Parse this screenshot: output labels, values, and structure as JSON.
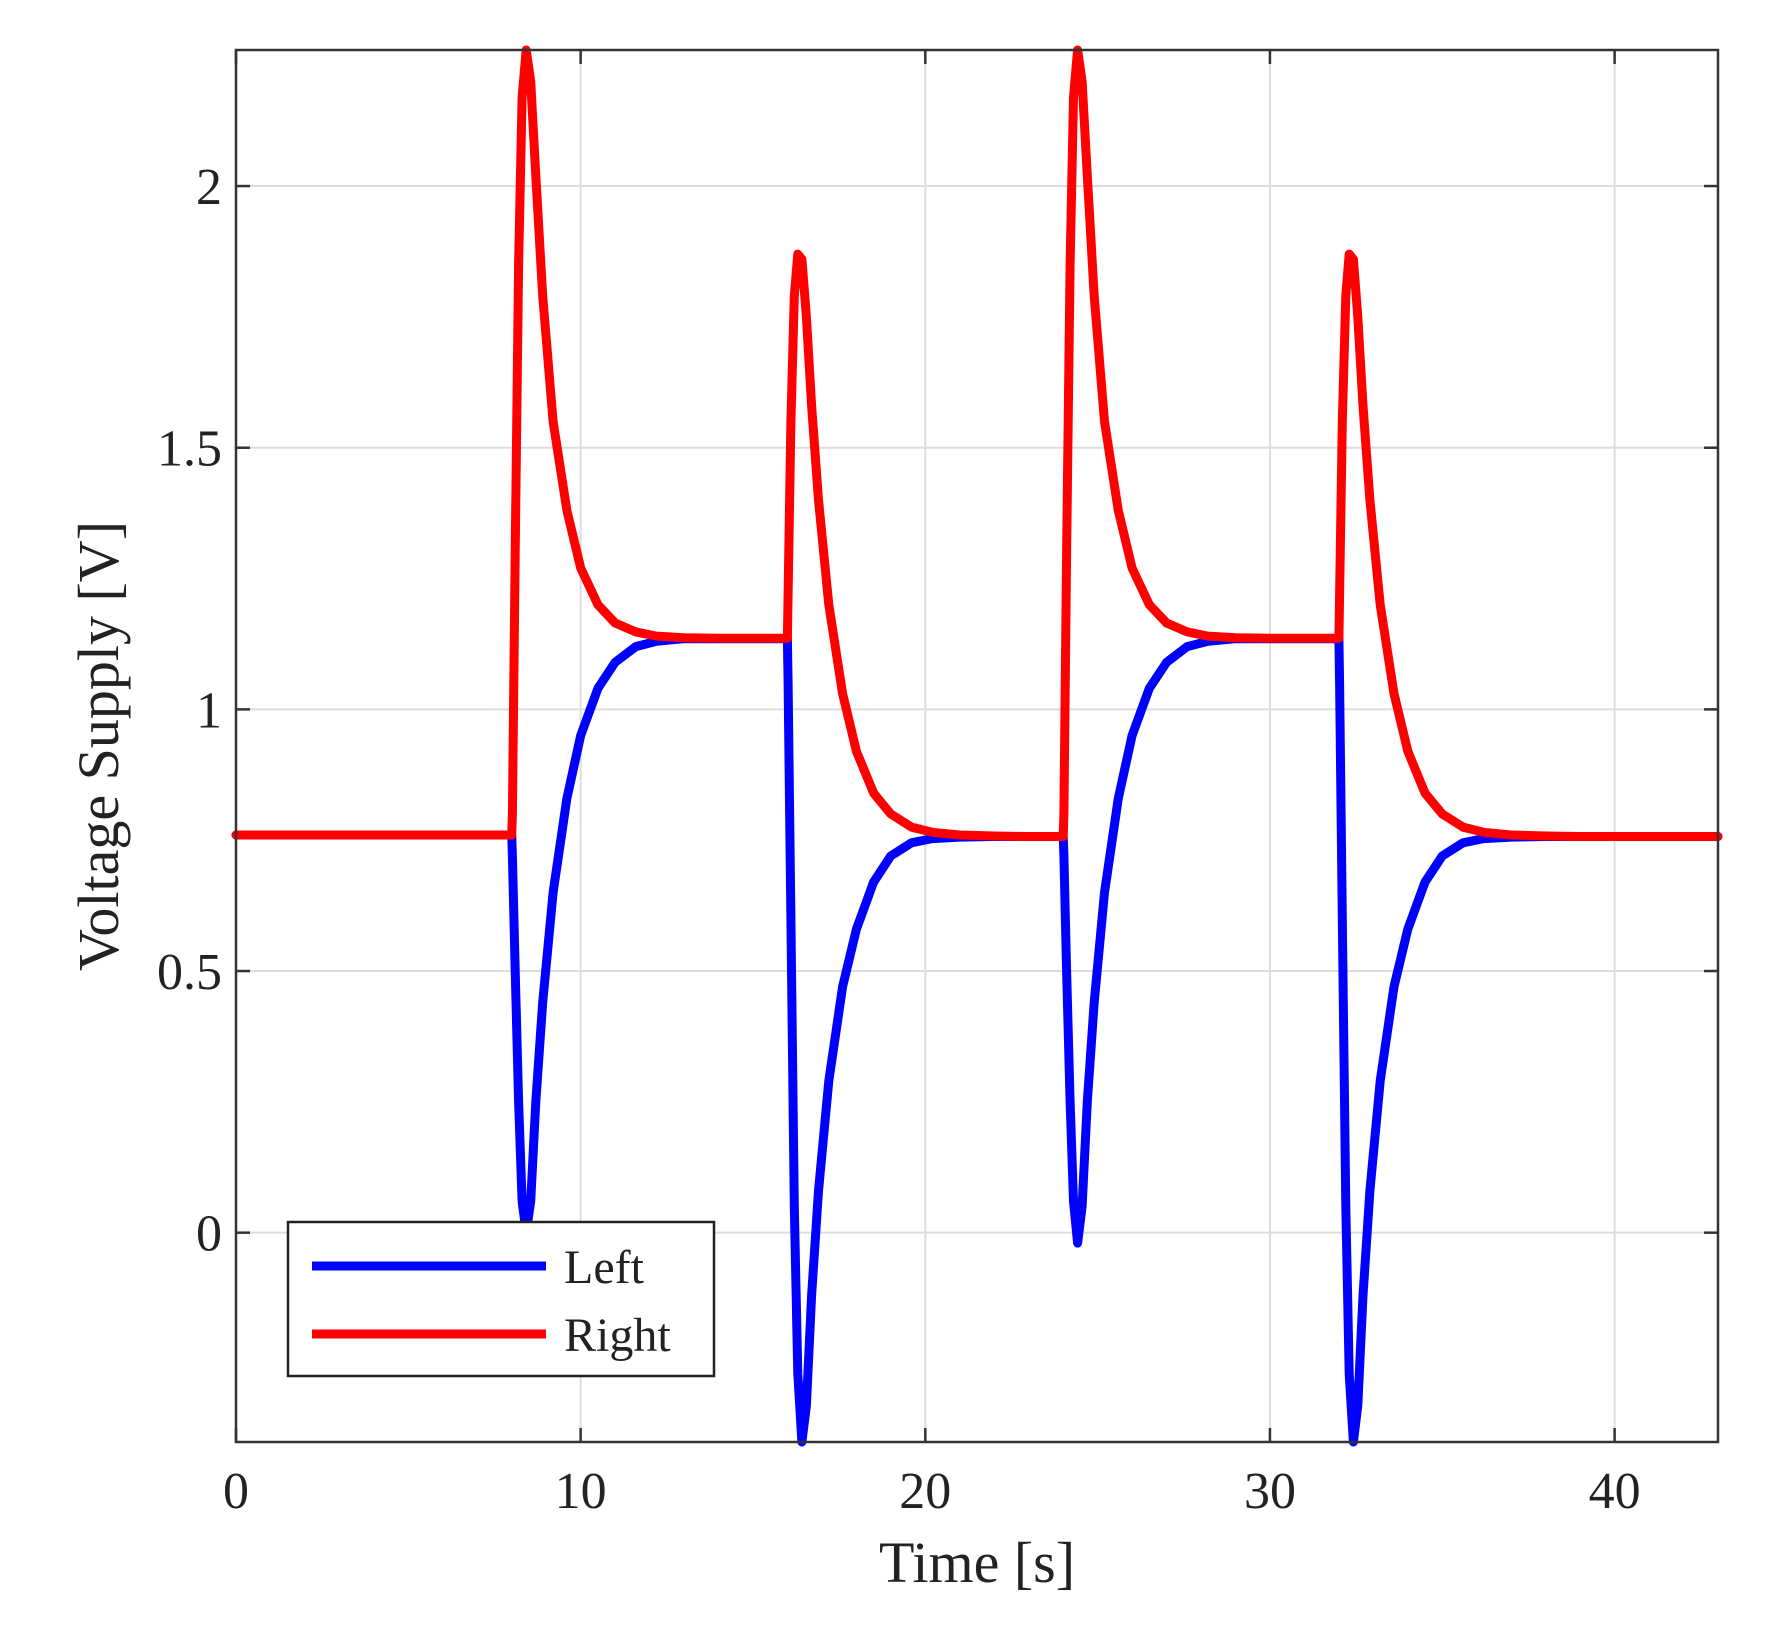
{
  "chart_data": {
    "type": "line",
    "title": "",
    "xlabel": "Time [s]",
    "ylabel": "Voltage Supply [V]",
    "xlim": [
      0,
      43
    ],
    "ylim": [
      -0.4,
      2.26
    ],
    "xticks": [
      0,
      10,
      20,
      30,
      40
    ],
    "xtick_labels": [
      "0",
      "10",
      "20",
      "30",
      "40"
    ],
    "yticks": [
      0,
      0.5,
      1,
      1.5,
      2
    ],
    "ytick_labels": [
      "0",
      "0.5",
      "1",
      "1.5",
      "2"
    ],
    "grid": true,
    "legend": {
      "position": "bottom-left",
      "entries": [
        "Left",
        "Right"
      ]
    },
    "series": [
      {
        "name": "Left",
        "color": "#0000ff",
        "x": [
          0,
          8,
          8.02,
          8.1,
          8.2,
          8.3,
          8.42,
          8.55,
          8.7,
          8.9,
          9.2,
          9.6,
          10.0,
          10.5,
          11.0,
          11.6,
          12.2,
          13.0,
          14.0,
          15.0,
          16.0,
          16.02,
          16.1,
          16.2,
          16.3,
          16.42,
          16.55,
          16.7,
          16.9,
          17.2,
          17.6,
          18.0,
          18.5,
          19.0,
          19.6,
          20.2,
          21.0,
          22.0,
          23.0,
          24.0,
          24.02,
          24.1,
          24.2,
          24.3,
          24.42,
          24.55,
          24.7,
          24.9,
          25.2,
          25.6,
          26.0,
          26.5,
          27.0,
          27.6,
          28.2,
          29.0,
          30.0,
          31.0,
          32.0,
          32.02,
          32.1,
          32.2,
          32.3,
          32.42,
          32.55,
          32.7,
          32.9,
          33.2,
          33.6,
          34.0,
          34.5,
          35.0,
          35.6,
          36.2,
          37.0,
          38.0,
          39.0,
          40.0,
          43.0
        ],
        "y": [
          0.76,
          0.76,
          0.72,
          0.5,
          0.25,
          0.06,
          0.0,
          0.06,
          0.25,
          0.44,
          0.65,
          0.83,
          0.95,
          1.04,
          1.09,
          1.12,
          1.13,
          1.135,
          1.135,
          1.135,
          1.135,
          1.05,
          0.6,
          0.05,
          -0.27,
          -0.4,
          -0.33,
          -0.12,
          0.08,
          0.29,
          0.47,
          0.58,
          0.67,
          0.72,
          0.745,
          0.753,
          0.756,
          0.757,
          0.757,
          0.757,
          0.72,
          0.5,
          0.25,
          0.06,
          -0.02,
          0.05,
          0.25,
          0.44,
          0.65,
          0.83,
          0.95,
          1.04,
          1.09,
          1.12,
          1.13,
          1.135,
          1.135,
          1.135,
          1.135,
          1.05,
          0.6,
          0.05,
          -0.27,
          -0.4,
          -0.33,
          -0.12,
          0.08,
          0.29,
          0.47,
          0.58,
          0.67,
          0.72,
          0.745,
          0.753,
          0.756,
          0.757,
          0.757,
          0.757,
          0.757
        ]
      },
      {
        "name": "Right",
        "color": "#ff0000",
        "x": [
          0,
          8,
          8.02,
          8.1,
          8.2,
          8.3,
          8.42,
          8.55,
          8.7,
          8.9,
          9.2,
          9.6,
          10.0,
          10.5,
          11.0,
          11.6,
          12.2,
          13.0,
          14.0,
          15.0,
          16.0,
          16.02,
          16.1,
          16.2,
          16.3,
          16.42,
          16.55,
          16.7,
          16.9,
          17.2,
          17.6,
          18.0,
          18.5,
          19.0,
          19.6,
          20.2,
          21.0,
          22.0,
          23.0,
          24.0,
          24.02,
          24.1,
          24.2,
          24.3,
          24.42,
          24.55,
          24.7,
          24.9,
          25.2,
          25.6,
          26.0,
          26.5,
          27.0,
          27.6,
          28.2,
          29.0,
          30.0,
          31.0,
          32.0,
          32.02,
          32.1,
          32.2,
          32.3,
          32.42,
          32.55,
          32.7,
          32.9,
          33.2,
          33.6,
          34.0,
          34.5,
          35.0,
          35.6,
          36.2,
          37.0,
          38.0,
          39.0,
          40.0,
          43.0
        ],
        "y": [
          0.76,
          0.76,
          0.8,
          1.3,
          1.85,
          2.17,
          2.26,
          2.2,
          2.02,
          1.79,
          1.55,
          1.38,
          1.27,
          1.2,
          1.165,
          1.148,
          1.14,
          1.137,
          1.136,
          1.136,
          1.136,
          1.22,
          1.55,
          1.79,
          1.87,
          1.86,
          1.75,
          1.58,
          1.4,
          1.2,
          1.03,
          0.92,
          0.84,
          0.8,
          0.775,
          0.765,
          0.76,
          0.758,
          0.757,
          0.757,
          0.8,
          1.3,
          1.85,
          2.17,
          2.26,
          2.2,
          2.02,
          1.79,
          1.55,
          1.38,
          1.27,
          1.2,
          1.165,
          1.148,
          1.14,
          1.137,
          1.136,
          1.136,
          1.136,
          1.22,
          1.55,
          1.79,
          1.87,
          1.86,
          1.75,
          1.58,
          1.4,
          1.2,
          1.03,
          0.92,
          0.84,
          0.8,
          0.775,
          0.765,
          0.76,
          0.758,
          0.757,
          0.757,
          0.757
        ]
      }
    ]
  }
}
